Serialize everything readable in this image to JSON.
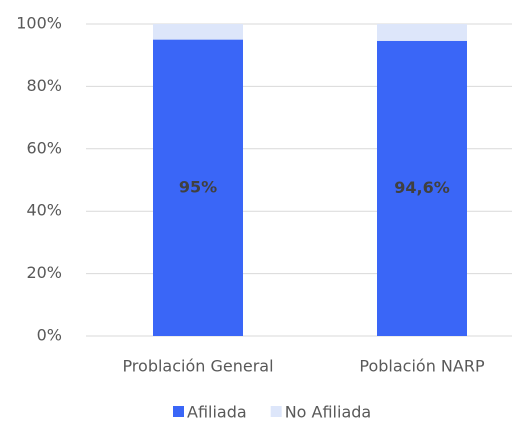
{
  "chart_data": {
    "type": "stacked_bar",
    "categories": [
      "Problación General",
      "Población NARP"
    ],
    "series": [
      {
        "name": "Afiliada",
        "color": "#3a66f7",
        "values": [
          95,
          94.6
        ],
        "value_labels": [
          "95%",
          "94,6%"
        ]
      },
      {
        "name": "No Afiliada",
        "color": "#dde6fa",
        "values": [
          5,
          5.4
        ]
      }
    ],
    "ylim": [
      0,
      100
    ],
    "yticks": [
      {
        "value": 0,
        "label": "0%"
      },
      {
        "value": 20,
        "label": "20%"
      },
      {
        "value": 40,
        "label": "40%"
      },
      {
        "value": 60,
        "label": "60%"
      },
      {
        "value": 80,
        "label": "80%"
      },
      {
        "value": 100,
        "label": "100%"
      }
    ],
    "grid": true,
    "legend": "bottom"
  }
}
